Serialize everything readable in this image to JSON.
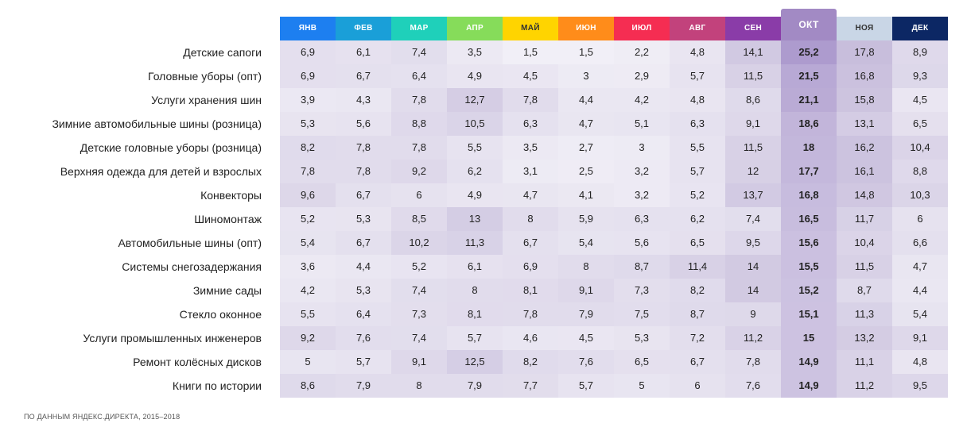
{
  "chart_data": {
    "type": "heatmap",
    "title": "",
    "columns": [
      "ЯНВ",
      "ФЕВ",
      "МАР",
      "АПР",
      "МАЙ",
      "ИЮН",
      "ИЮЛ",
      "АВГ",
      "СЕН",
      "ОКТ",
      "НОЯ",
      "ДЕК"
    ],
    "column_colors": [
      "#1d7ff0",
      "#1a9fd8",
      "#1fd0ba",
      "#86dc5a",
      "#ffd400",
      "#ff8c1a",
      "#f52d52",
      "#c2427c",
      "#8a3ca8",
      "#a28ac4",
      "#c9d6e6",
      "#0c2764"
    ],
    "highlight_column": "ОКТ",
    "rows": [
      {
        "label": "Детские сапоги",
        "values": [
          "6,9",
          "6,1",
          "7,4",
          "3,5",
          "1,5",
          "1,5",
          "2,2",
          "4,8",
          "14,1",
          "25,2",
          "17,8",
          "8,9"
        ]
      },
      {
        "label": "Головные уборы (опт)",
        "values": [
          "6,9",
          "6,7",
          "6,4",
          "4,9",
          "4,5",
          "3",
          "2,9",
          "5,7",
          "11,5",
          "21,5",
          "16,8",
          "9,3"
        ]
      },
      {
        "label": "Услуги хранения шин",
        "values": [
          "3,9",
          "4,3",
          "7,8",
          "12,7",
          "7,8",
          "4,4",
          "4,2",
          "4,8",
          "8,6",
          "21,1",
          "15,8",
          "4,5"
        ]
      },
      {
        "label": "Зимние автомобильные шины (розница)",
        "values": [
          "5,3",
          "5,6",
          "8,8",
          "10,5",
          "6,3",
          "4,7",
          "5,1",
          "6,3",
          "9,1",
          "18,6",
          "13,1",
          "6,5"
        ]
      },
      {
        "label": "Детские головные уборы (розница)",
        "values": [
          "8,2",
          "7,8",
          "7,8",
          "5,5",
          "3,5",
          "2,7",
          "3",
          "5,5",
          "11,5",
          "18",
          "16,2",
          "10,4"
        ]
      },
      {
        "label": "Верхняя одежда для детей и взрослых",
        "values": [
          "7,8",
          "7,8",
          "9,2",
          "6,2",
          "3,1",
          "2,5",
          "3,2",
          "5,7",
          "12",
          "17,7",
          "16,1",
          "8,8"
        ]
      },
      {
        "label": "Конвекторы",
        "values": [
          "9,6",
          "6,7",
          "6",
          "4,9",
          "4,7",
          "4,1",
          "3,2",
          "5,2",
          "13,7",
          "16,8",
          "14,8",
          "10,3"
        ]
      },
      {
        "label": "Шиномонтаж",
        "values": [
          "5,2",
          "5,3",
          "8,5",
          "13",
          "8",
          "5,9",
          "6,3",
          "6,2",
          "7,4",
          "16,5",
          "11,7",
          "6"
        ]
      },
      {
        "label": "Автомобильные шины (опт)",
        "values": [
          "5,4",
          "6,7",
          "10,2",
          "11,3",
          "6,7",
          "5,4",
          "5,6",
          "6,5",
          "9,5",
          "15,6",
          "10,4",
          "6,6"
        ]
      },
      {
        "label": "Системы снегозадержания",
        "values": [
          "3,6",
          "4,4",
          "5,2",
          "6,1",
          "6,9",
          "8",
          "8,7",
          "11,4",
          "14",
          "15,5",
          "11,5",
          "4,7"
        ]
      },
      {
        "label": "Зимние сады",
        "values": [
          "4,2",
          "5,3",
          "7,4",
          "8",
          "8,1",
          "9,1",
          "7,3",
          "8,2",
          "14",
          "15,2",
          "8,7",
          "4,4"
        ]
      },
      {
        "label": "Стекло оконное",
        "values": [
          "5,5",
          "6,4",
          "7,3",
          "8,1",
          "7,8",
          "7,9",
          "7,5",
          "8,7",
          "9",
          "15,1",
          "11,3",
          "5,4"
        ]
      },
      {
        "label": "Услуги промышленных инженеров",
        "values": [
          "9,2",
          "7,6",
          "7,4",
          "5,7",
          "4,6",
          "4,5",
          "5,3",
          "7,2",
          "11,2",
          "15",
          "13,2",
          "9,1"
        ]
      },
      {
        "label": "Ремонт колёсных дисков",
        "values": [
          "5",
          "5,7",
          "9,1",
          "12,5",
          "8,2",
          "7,6",
          "6,5",
          "6,7",
          "7,8",
          "14,9",
          "11,1",
          "4,8"
        ]
      },
      {
        "label": "Книги по истории",
        "values": [
          "8,6",
          "7,9",
          "8",
          "7,9",
          "7,7",
          "5,7",
          "5",
          "6",
          "7,6",
          "14,9",
          "11,2",
          "9,5"
        ]
      }
    ]
  },
  "footnote": "По данным Яндекс.Директа, 2015–2018"
}
